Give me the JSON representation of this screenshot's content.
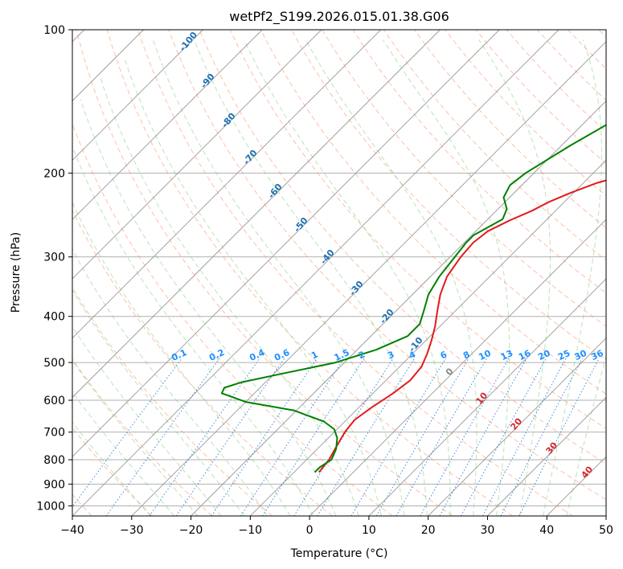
{
  "chart_data": {
    "type": "line",
    "subtype": "skew-t log-p",
    "title": "wetPf2_S199.2026.015.01.38.G06",
    "xlabel": "Temperature (°C)",
    "ylabel": "Pressure (hPa)",
    "xlim": [
      -40,
      50
    ],
    "ylim": [
      1050,
      100
    ],
    "x_ticks": [
      -40,
      -30,
      -20,
      -10,
      0,
      10,
      20,
      30,
      40,
      50
    ],
    "y_ticks": [
      100,
      200,
      300,
      400,
      500,
      600,
      700,
      800,
      900,
      1000
    ],
    "grid": true,
    "series": [
      {
        "name": "Temperature",
        "color": "#e31a1c",
        "points": [
          [
            -5.8,
            850
          ],
          [
            -6.2,
            800
          ],
          [
            -7.2,
            750
          ],
          [
            -8.2,
            700
          ],
          [
            -8.6,
            660
          ],
          [
            -7.8,
            620
          ],
          [
            -6.6,
            580
          ],
          [
            -5.9,
            545
          ],
          [
            -6.3,
            510
          ],
          [
            -7.5,
            480
          ],
          [
            -9.0,
            450
          ],
          [
            -10.8,
            420
          ],
          [
            -13.0,
            390
          ],
          [
            -15.3,
            360
          ],
          [
            -17.2,
            330
          ],
          [
            -18.2,
            300
          ],
          [
            -18.5,
            280
          ],
          [
            -18.0,
            265
          ],
          [
            -16.2,
            252
          ],
          [
            -14.0,
            240
          ],
          [
            -12.6,
            230
          ],
          [
            -10.5,
            220
          ],
          [
            -7.8,
            210
          ],
          [
            -3.4,
            200
          ],
          [
            -0.3,
            190
          ],
          [
            6.1,
            170
          ],
          [
            12.5,
            150
          ],
          [
            17.0,
            140
          ],
          [
            23.0,
            130
          ],
          [
            30.0,
            115
          ],
          [
            38.0,
            100
          ]
        ]
      },
      {
        "name": "Dewpoint",
        "color": "#008000",
        "points": [
          [
            -6.5,
            850
          ],
          [
            -6.5,
            830
          ],
          [
            -5.8,
            800
          ],
          [
            -6.8,
            760
          ],
          [
            -8.5,
            720
          ],
          [
            -10.5,
            690
          ],
          [
            -13.5,
            665
          ],
          [
            -20.5,
            630
          ],
          [
            -30.0,
            605
          ],
          [
            -35.5,
            580
          ],
          [
            -36.0,
            565
          ],
          [
            -34.0,
            550
          ],
          [
            -28.0,
            525
          ],
          [
            -21.5,
            500
          ],
          [
            -16.8,
            470
          ],
          [
            -13.8,
            440
          ],
          [
            -13.8,
            415
          ],
          [
            -15.3,
            390
          ],
          [
            -17.3,
            360
          ],
          [
            -18.5,
            330
          ],
          [
            -19.2,
            300
          ],
          [
            -19.7,
            280
          ],
          [
            -19.7,
            270
          ],
          [
            -18.4,
            258
          ],
          [
            -17.5,
            250
          ],
          [
            -18.5,
            238
          ],
          [
            -21.0,
            225
          ],
          [
            -22.0,
            212
          ],
          [
            -21.4,
            200
          ],
          [
            -18.5,
            175
          ],
          [
            -14.5,
            150
          ],
          [
            -9.8,
            130
          ],
          [
            -4.7,
            115
          ],
          [
            1.5,
            100
          ]
        ]
      }
    ],
    "dry_adiabat_labels": [
      "-100",
      "-90",
      "-80",
      "-70",
      "-60",
      "-50",
      "-40",
      "-30",
      "-20",
      "-10"
    ],
    "moist_adiabat_labels": [
      "0",
      "10",
      "20",
      "30",
      "40"
    ],
    "mixing_ratio_labels": [
      "0.1",
      "0.2",
      "0.4",
      "0.6",
      "1",
      "1.5",
      "2",
      "3",
      "4",
      "6",
      "8",
      "10",
      "13",
      "16",
      "20",
      "25",
      "30",
      "36"
    ],
    "colors": {
      "dry_adiabat": "#fc8d62",
      "moist_adiabat": "#66c266",
      "mixing_ratio": "#1f78d4",
      "dry_label": "#1f6fb2",
      "moist_label_zero": "#888888",
      "moist_label": "#d62728",
      "mixing_label": "#1e90ff",
      "isotherm": "#999999"
    }
  }
}
